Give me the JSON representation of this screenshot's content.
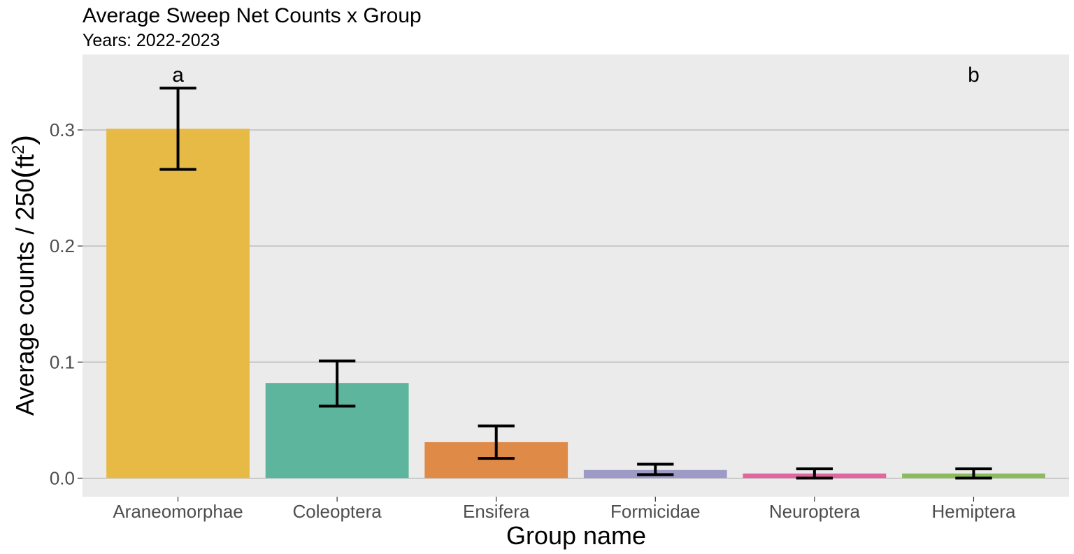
{
  "chart_data": {
    "type": "bar",
    "title": "Average Sweep Net Counts x Group",
    "subtitle": "Years: 2022-2023",
    "xlabel": "Group name",
    "ylabel": "Average counts / 250(ft²)",
    "ylabel_parts": {
      "main": "Average counts / 250",
      "unit_open": "(",
      "unit_base": "ft",
      "unit_sup": "2",
      "unit_close": ")"
    },
    "ylim": [
      -0.016,
      0.365
    ],
    "yticks": [
      0.0,
      0.1,
      0.2,
      0.3
    ],
    "ytick_labels": [
      "0.0",
      "0.1",
      "0.2",
      "0.3"
    ],
    "grid": true,
    "legend": "none",
    "categories": [
      "Araneomorphae",
      "Coleoptera",
      "Ensifera",
      "Formicidae",
      "Neuroptera",
      "Hemiptera"
    ],
    "values": [
      0.301,
      0.082,
      0.031,
      0.007,
      0.004,
      0.004
    ],
    "error_low": [
      0.266,
      0.062,
      0.017,
      0.003,
      0.0,
      0.0
    ],
    "error_high": [
      0.336,
      0.101,
      0.045,
      0.012,
      0.008,
      0.008
    ],
    "colors": [
      "#E7BA46",
      "#5CB59C",
      "#E08A48",
      "#9E9AC6",
      "#E0679E",
      "#8CBB5E"
    ],
    "bar_opacity": 1,
    "panel_background": "#EBEBEB",
    "gridline_color": "#B3B3B3",
    "annotations": [
      {
        "text": "a",
        "x": "Araneomorphae",
        "y": 0.348
      },
      {
        "text": "b",
        "x": "Hemiptera",
        "y": 0.348
      }
    ]
  }
}
